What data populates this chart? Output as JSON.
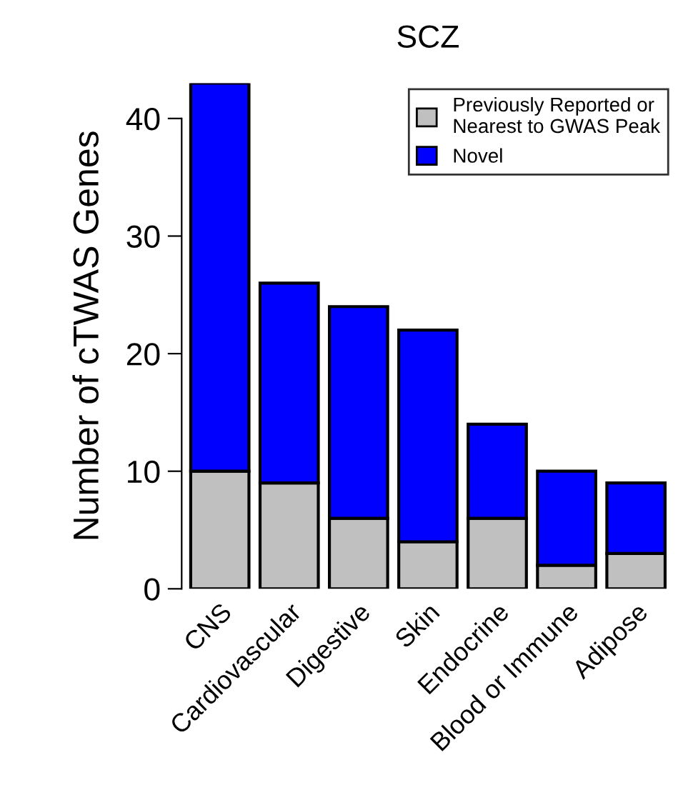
{
  "chart_data": {
    "type": "bar",
    "title": "SCZ",
    "ylabel": "Number of cTWAS Genes",
    "categories": [
      "CNS",
      "Cardiovascular",
      "Digestive",
      "Skin",
      "Endocrine",
      "Blood or Immune",
      "Adipose"
    ],
    "stacked": true,
    "series": [
      {
        "name": "Previously Reported or\nNearest to GWAS Peak",
        "color": "#c0c0c0",
        "values": [
          10,
          9,
          6,
          4,
          6,
          2,
          3
        ]
      },
      {
        "name": "Novel",
        "color": "#0000ff",
        "values": [
          33,
          17,
          18,
          18,
          8,
          8,
          6
        ]
      }
    ],
    "ylim": [
      0,
      43
    ],
    "yticks": [
      0,
      10,
      20,
      30,
      40
    ],
    "grid": false,
    "legend": "top right"
  }
}
